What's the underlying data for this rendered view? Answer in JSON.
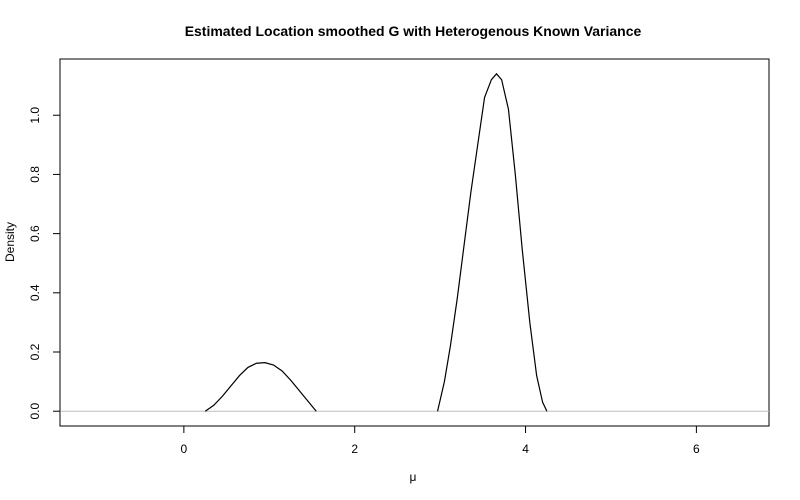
{
  "chart_data": {
    "type": "line",
    "title": "Estimated Location smoothed G with Heterogenous Known Variance",
    "xlabel": "μ",
    "ylabel": "Density",
    "xlim": [
      -1.45,
      6.85
    ],
    "ylim": [
      -0.05,
      1.19
    ],
    "x_ticks": [
      0,
      2,
      4,
      6
    ],
    "y_ticks": [
      0.0,
      0.2,
      0.4,
      0.6,
      0.8,
      1.0
    ],
    "grid": false,
    "legend": "none",
    "colors": {
      "line": "#000000",
      "baseline": "#bebebe"
    },
    "baseline_y": 0,
    "series": [
      {
        "values_xy": [
          [
            0.25,
            0.0
          ],
          [
            0.35,
            0.02
          ],
          [
            0.45,
            0.05
          ],
          [
            0.55,
            0.085
          ],
          [
            0.65,
            0.12
          ],
          [
            0.75,
            0.148
          ],
          [
            0.85,
            0.162
          ],
          [
            0.95,
            0.164
          ],
          [
            1.05,
            0.156
          ],
          [
            1.15,
            0.136
          ],
          [
            1.25,
            0.105
          ],
          [
            1.35,
            0.07
          ],
          [
            1.45,
            0.035
          ],
          [
            1.55,
            0.0
          ]
        ]
      },
      {
        "values_xy": [
          [
            2.97,
            0.0
          ],
          [
            3.05,
            0.1
          ],
          [
            3.12,
            0.22
          ],
          [
            3.2,
            0.38
          ],
          [
            3.28,
            0.56
          ],
          [
            3.36,
            0.74
          ],
          [
            3.44,
            0.9
          ],
          [
            3.52,
            1.06
          ],
          [
            3.6,
            1.12
          ],
          [
            3.66,
            1.14
          ],
          [
            3.72,
            1.12
          ],
          [
            3.8,
            1.02
          ],
          [
            3.88,
            0.8
          ],
          [
            3.96,
            0.55
          ],
          [
            4.05,
            0.3
          ],
          [
            4.13,
            0.12
          ],
          [
            4.2,
            0.03
          ],
          [
            4.25,
            0.0
          ]
        ]
      }
    ]
  }
}
